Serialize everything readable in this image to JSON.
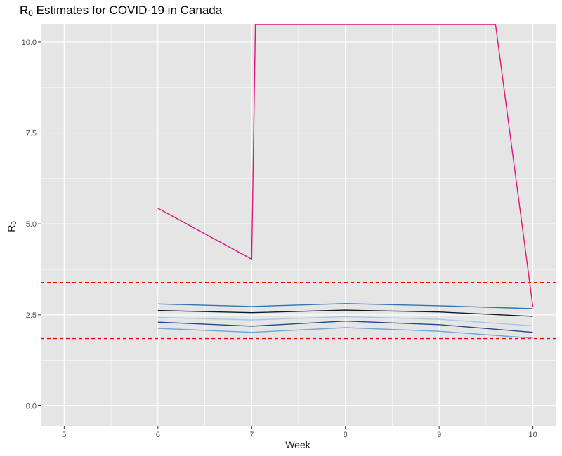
{
  "chart_data": {
    "type": "line",
    "title": {
      "main": "R",
      "sub": "0",
      "rest": " Estimates for COVID-19 in Canada"
    },
    "xlabel": "Week",
    "ylabel": {
      "main": "R",
      "sub": "0"
    },
    "xlim": [
      4.75,
      10.25
    ],
    "ylim": [
      -0.55,
      10.5
    ],
    "x_ticks": [
      5,
      6,
      7,
      8,
      9,
      10
    ],
    "x_tick_labels": [
      "5",
      "6",
      "7",
      "8",
      "9",
      "10"
    ],
    "y_ticks": [
      0,
      2.5,
      5,
      7.5,
      10
    ],
    "y_tick_labels": [
      "0.0",
      "2.5",
      "5.0",
      "7.5",
      "10.0"
    ],
    "grid": true,
    "legend": "none",
    "series": [
      {
        "color": "#e0157a",
        "x": [
          6,
          7,
          7.04,
          9.6,
          10
        ],
        "y": [
          5.43,
          4.03,
          10.5,
          10.5,
          2.72
        ]
      },
      {
        "color": "#3473b6",
        "x": [
          6,
          7,
          8,
          9,
          10
        ],
        "y": [
          2.8,
          2.73,
          2.81,
          2.75,
          2.67
        ]
      },
      {
        "color": "#0d1b2a",
        "x": [
          6,
          7,
          8,
          9,
          10
        ],
        "y": [
          2.62,
          2.56,
          2.63,
          2.58,
          2.46
        ]
      },
      {
        "color": "#a6c8e6",
        "x": [
          6,
          7,
          8,
          9,
          10
        ],
        "y": [
          2.43,
          2.36,
          2.45,
          2.38,
          2.2
        ]
      },
      {
        "color": "#1f4a8f",
        "x": [
          6,
          7,
          8,
          9,
          10
        ],
        "y": [
          2.3,
          2.19,
          2.33,
          2.23,
          2.02
        ]
      },
      {
        "color": "#6da7d6",
        "x": [
          6,
          7,
          8,
          9,
          10
        ],
        "y": [
          2.13,
          2.02,
          2.15,
          2.05,
          1.86
        ]
      }
    ],
    "hlines": [
      {
        "y": 3.39,
        "color": "#ff0000",
        "style": "dashed"
      },
      {
        "y": 1.85,
        "color": "#ff0000",
        "style": "dashed"
      }
    ],
    "colors": {
      "panel": "#e5e5e5",
      "grid": "#ffffff",
      "tick": "#333333"
    }
  }
}
